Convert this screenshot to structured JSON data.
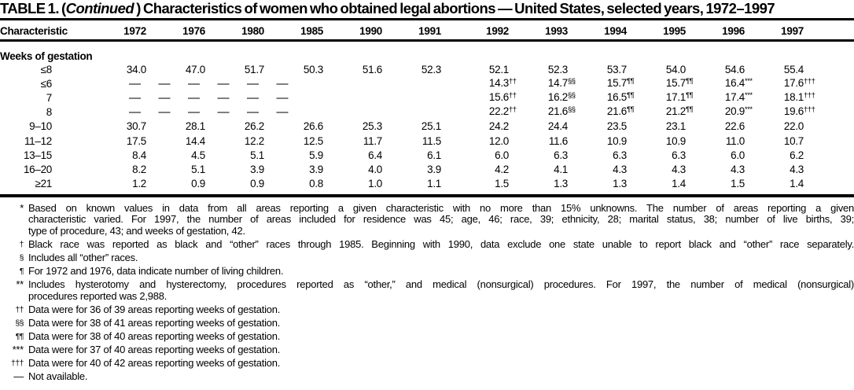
{
  "title": {
    "part1": "TABLE 1. (",
    "part2": "Continued",
    "part3": " ) Characteristics of women who obtained legal abortions — United States, selected years, 1972–1997"
  },
  "table": {
    "characteristic_header": "Characteristic",
    "years": [
      "1972",
      "1976",
      "1980",
      "1985",
      "1990",
      "1991",
      "1992",
      "1993",
      "1994",
      "1995",
      "1996",
      "1997"
    ],
    "section_label": "Weeks of gestation",
    "not_available_symbol": "—",
    "rows": [
      {
        "label": "≤8",
        "cells": [
          "34.0",
          "47.0",
          "51.7",
          "50.3",
          "51.6",
          "52.3",
          "52.1",
          "52.3",
          "53.7",
          "54.0",
          "54.6",
          "55.4"
        ]
      },
      {
        "label": "≤6",
        "dash_cells": 6,
        "cells": [
          "14.3",
          "14.7",
          "15.7",
          "15.7",
          "16.4",
          "17.6"
        ],
        "sups": [
          "††",
          "§§",
          "¶¶",
          "¶¶",
          "***",
          "†††"
        ]
      },
      {
        "label": "7",
        "dash_cells": 6,
        "cells": [
          "15.6",
          "16.2",
          "16.5",
          "17.1",
          "17.4",
          "18.1"
        ],
        "sups": [
          "††",
          "§§",
          "¶¶",
          "¶¶",
          "***",
          "†††"
        ]
      },
      {
        "label": "8",
        "dash_cells": 6,
        "cells": [
          "22.2",
          "21.6",
          "21.6",
          "21.2",
          "20.9",
          "19.6"
        ],
        "sups": [
          "††",
          "§§",
          "¶¶",
          "¶¶",
          "***",
          "†††"
        ]
      },
      {
        "label": "9–10",
        "cells": [
          "30.7",
          "28.1",
          "26.2",
          "26.6",
          "25.3",
          "25.1",
          "24.2",
          "24.4",
          "23.5",
          "23.1",
          "22.6",
          "22.0"
        ]
      },
      {
        "label": "11–12",
        "cells": [
          "17.5",
          "14.4",
          "12.2",
          "12.5",
          "11.7",
          "11.5",
          "12.0",
          "11.6",
          "10.9",
          "10.9",
          "11.0",
          "10.7"
        ]
      },
      {
        "label": "13–15",
        "cells": [
          "8.4",
          "4.5",
          "5.1",
          "5.9",
          "6.4",
          "6.1",
          "6.0",
          "6.3",
          "6.3",
          "6.3",
          "6.0",
          "6.2"
        ]
      },
      {
        "label": "16–20",
        "cells": [
          "8.2",
          "5.1",
          "3.9",
          "3.9",
          "4.0",
          "3.9",
          "4.2",
          "4.1",
          "4.3",
          "4.3",
          "4.3",
          "4.3"
        ]
      },
      {
        "label": "≥21",
        "cells": [
          "1.2",
          "0.9",
          "0.9",
          "0.8",
          "1.0",
          "1.1",
          "1.5",
          "1.3",
          "1.3",
          "1.4",
          "1.5",
          "1.4"
        ]
      }
    ]
  },
  "footnotes": [
    {
      "marker": "*",
      "fill_lines": 2,
      "lines": [
        "Based on known values in data from all areas reporting a given characteristic with no more than 15% unknowns. The number of areas reporting a given",
        "characteristic varied. For 1997, the number of areas included for residence was 45; age, 46; race, 39; ethnicity, 28; marital status, 38; number of live births, 39;",
        "type of procedure, 43; and weeks of gestation, 42."
      ]
    },
    {
      "marker": "†",
      "fill_lines": 1,
      "lines": [
        "Black race was reported as black and “other” races through 1985. Beginning with 1990, data exclude one state unable to report black and “other” race separately."
      ]
    },
    {
      "marker": "§",
      "fill_lines": 0,
      "lines": [
        "Includes all “other” races."
      ]
    },
    {
      "marker": "¶",
      "fill_lines": 0,
      "lines": [
        "For 1972 and 1976, data indicate number of living children."
      ]
    },
    {
      "marker": "**",
      "fill_lines": 1,
      "lines": [
        "Includes hysterotomy and hysterectomy, procedures reported as “other,” and medical (nonsurgical) procedures. For 1997, the number of medical (nonsurgical)",
        "procedures reported was 2,988."
      ]
    },
    {
      "marker": "††",
      "fill_lines": 0,
      "lines": [
        "Data were for 36 of 39 areas reporting weeks of gestation."
      ]
    },
    {
      "marker": "§§",
      "fill_lines": 0,
      "lines": [
        "Data were for 38 of 41 areas reporting weeks of gestation."
      ]
    },
    {
      "marker": "¶¶",
      "fill_lines": 0,
      "lines": [
        "Data were for 38 of 40 areas reporting weeks of gestation."
      ]
    },
    {
      "marker": "***",
      "fill_lines": 0,
      "lines": [
        "Data were for 37 of 40 areas reporting weeks of gestation."
      ]
    },
    {
      "marker": "†††",
      "fill_lines": 0,
      "lines": [
        "Data were for 40 of 42 areas reporting weeks of gestation."
      ]
    },
    {
      "marker": "—",
      "fill_lines": 0,
      "lines": [
        "Not available."
      ]
    }
  ],
  "colors": {
    "text": "#000000",
    "background": "#ffffff",
    "rule": "#000000"
  }
}
